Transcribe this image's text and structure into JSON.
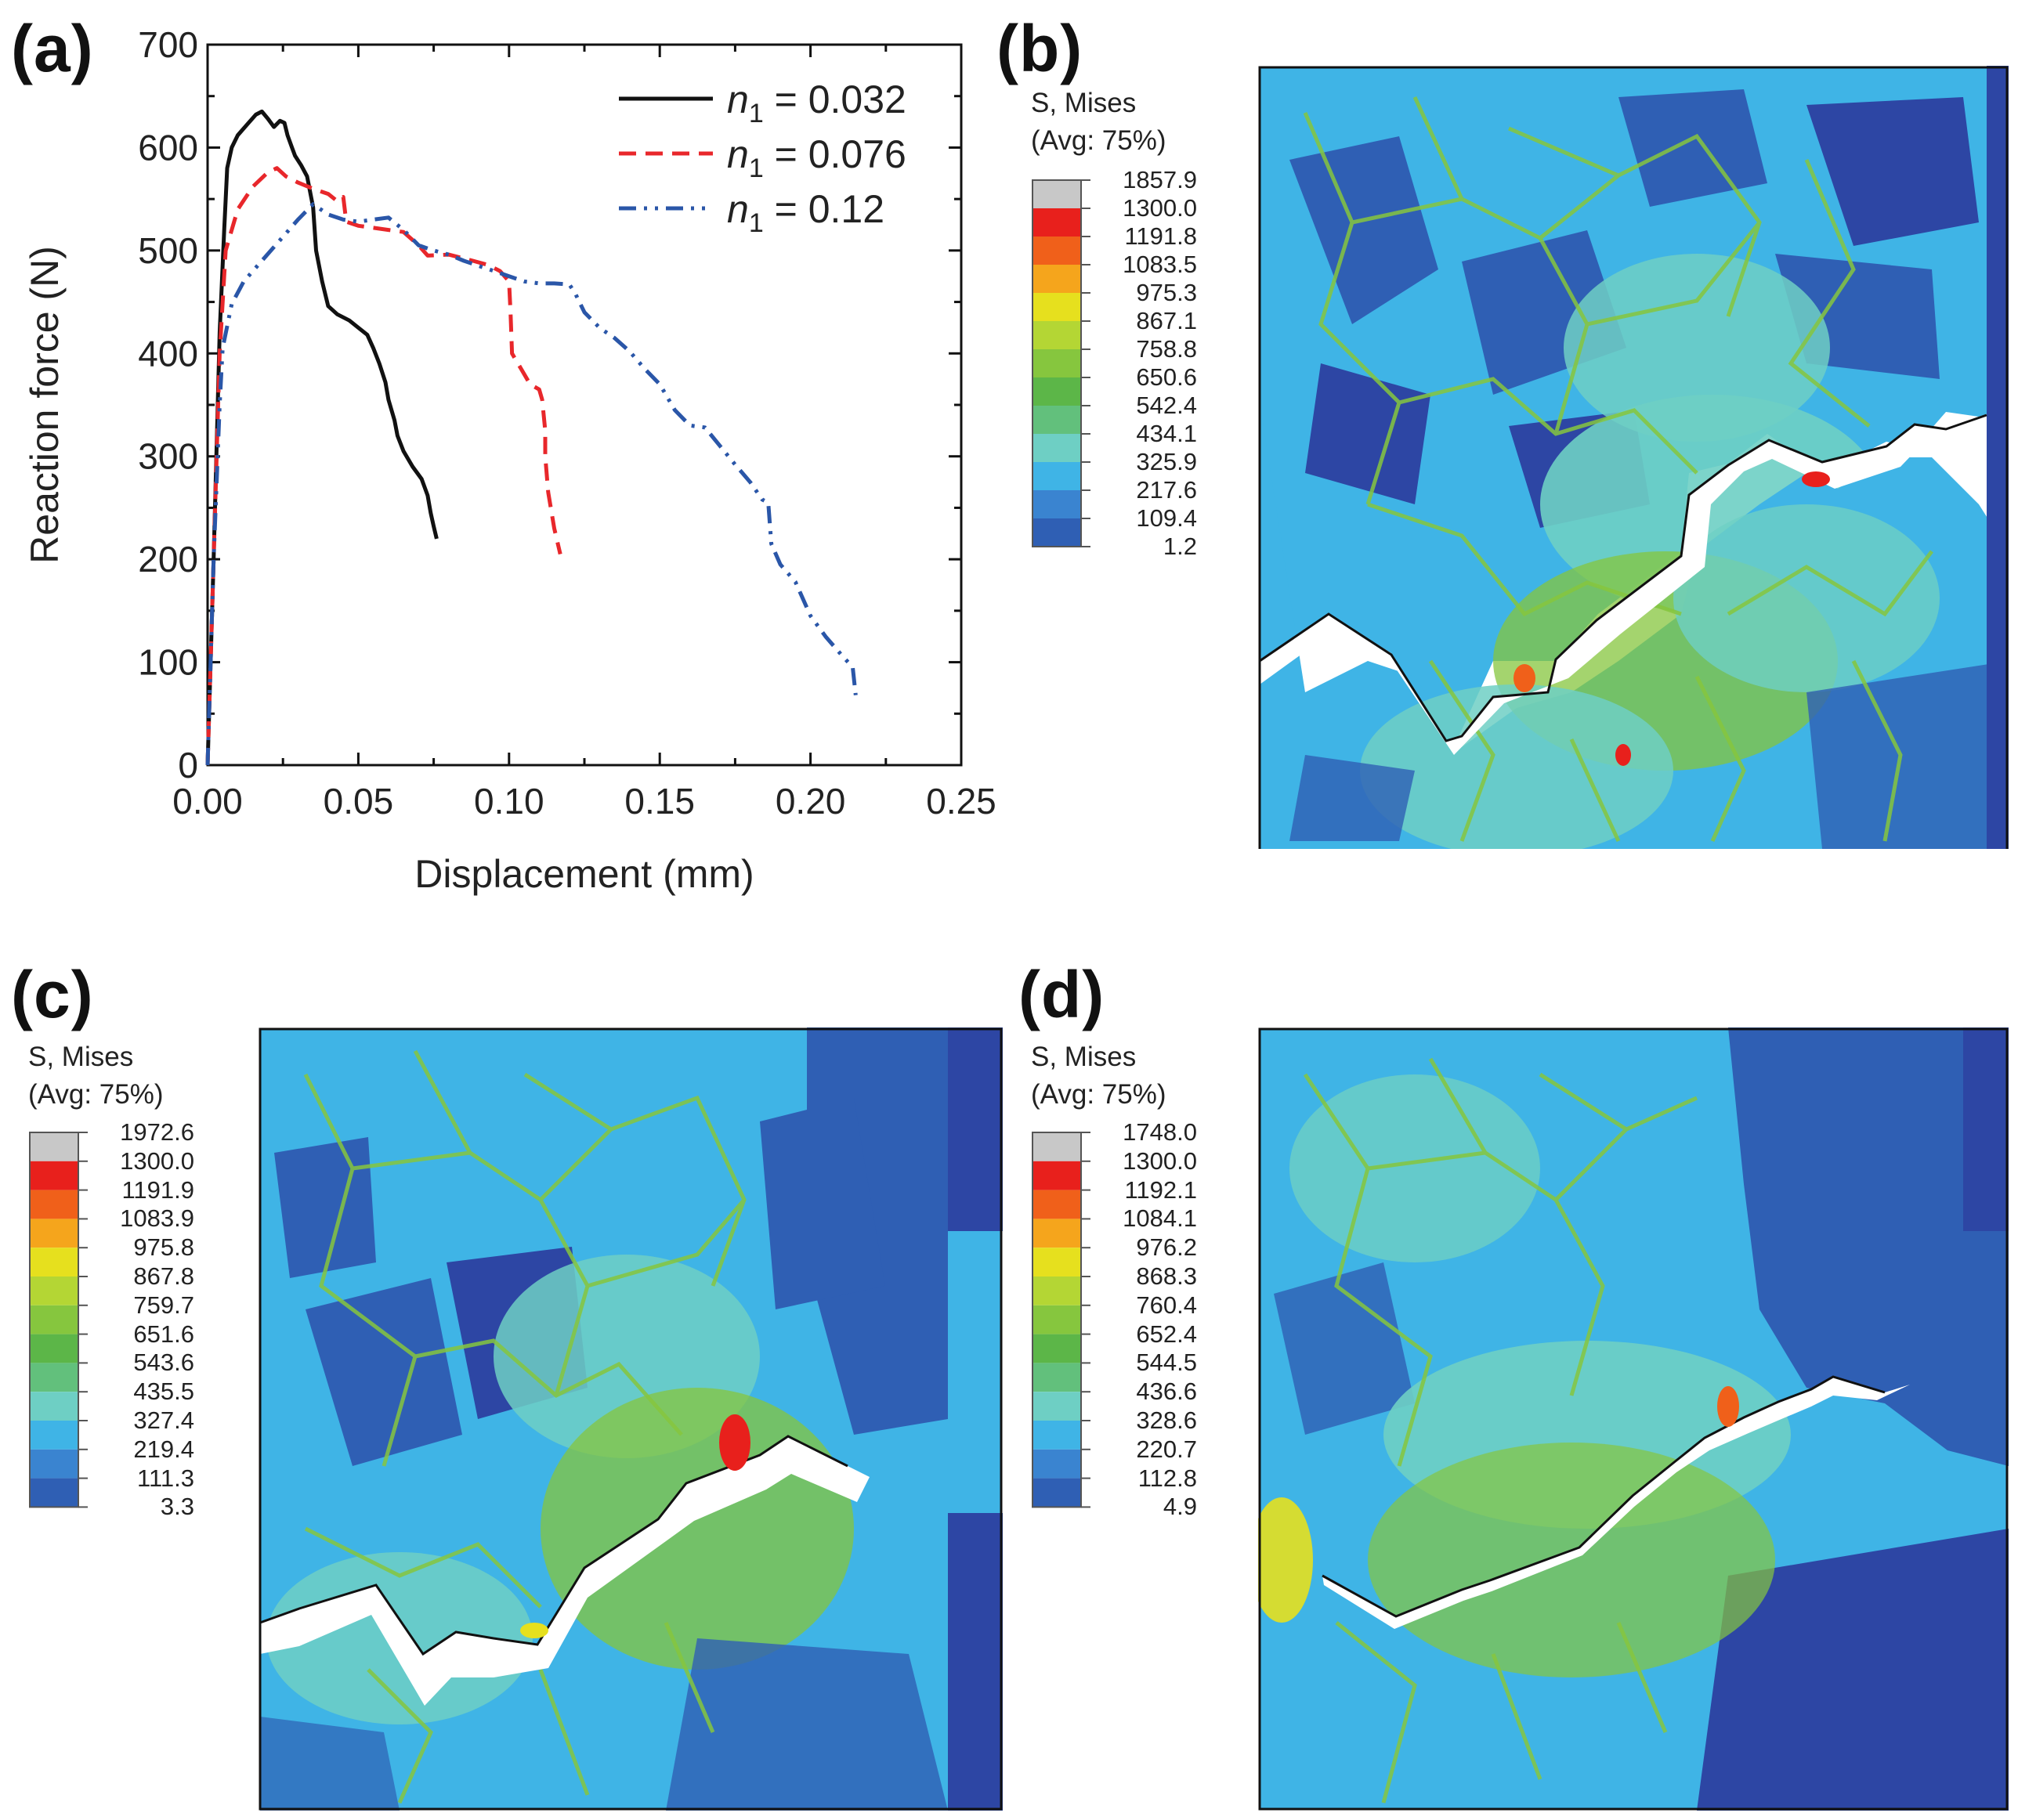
{
  "panels": {
    "a": "(a)",
    "b": "(b)",
    "c": "(c)",
    "d": "(d)"
  },
  "chart_data": {
    "type": "line",
    "title": "",
    "xlabel": "Displacement (mm)",
    "ylabel": "Reaction force (N)",
    "xlim": [
      0,
      0.25
    ],
    "ylim": [
      0,
      700
    ],
    "xticks": [
      "0.00",
      "0.05",
      "0.10",
      "0.15",
      "0.20",
      "0.25"
    ],
    "yticks": [
      "0",
      "100",
      "200",
      "300",
      "400",
      "500",
      "600",
      "700"
    ],
    "legend_position": "top-right",
    "series": [
      {
        "name": "n1 = 0.032",
        "legend_var": "n",
        "legend_sub": "1",
        "legend_value": " = 0.032",
        "color": "#111111",
        "dash": "solid",
        "points": [
          [
            0,
            0
          ],
          [
            0.002,
            200
          ],
          [
            0.004,
            420
          ],
          [
            0.0055,
            520
          ],
          [
            0.0065,
            580
          ],
          [
            0.008,
            600
          ],
          [
            0.01,
            612
          ],
          [
            0.013,
            622
          ],
          [
            0.016,
            632
          ],
          [
            0.018,
            635
          ],
          [
            0.02,
            628
          ],
          [
            0.022,
            620
          ],
          [
            0.024,
            626
          ],
          [
            0.0255,
            624
          ],
          [
            0.0265,
            612
          ],
          [
            0.028,
            600
          ],
          [
            0.029,
            592
          ],
          [
            0.031,
            583
          ],
          [
            0.033,
            572
          ],
          [
            0.035,
            542
          ],
          [
            0.036,
            500
          ],
          [
            0.038,
            470
          ],
          [
            0.04,
            446
          ],
          [
            0.043,
            438
          ],
          [
            0.047,
            432
          ],
          [
            0.05,
            425
          ],
          [
            0.053,
            418
          ],
          [
            0.055,
            405
          ],
          [
            0.057,
            390
          ],
          [
            0.059,
            372
          ],
          [
            0.06,
            355
          ],
          [
            0.062,
            335
          ],
          [
            0.063,
            320
          ],
          [
            0.065,
            305
          ],
          [
            0.068,
            290
          ],
          [
            0.071,
            278
          ],
          [
            0.073,
            262
          ],
          [
            0.074,
            245
          ],
          [
            0.075,
            232
          ],
          [
            0.076,
            220
          ]
        ]
      },
      {
        "name": "n1 = 0.076",
        "legend_var": "n",
        "legend_sub": "1",
        "legend_value": " = 0.076",
        "color": "#e8272b",
        "dash": "dashed",
        "points": [
          [
            0,
            0
          ],
          [
            0.002,
            200
          ],
          [
            0.004,
            400
          ],
          [
            0.006,
            500
          ],
          [
            0.01,
            540
          ],
          [
            0.015,
            562
          ],
          [
            0.02,
            576
          ],
          [
            0.023,
            580
          ],
          [
            0.026,
            572
          ],
          [
            0.03,
            566
          ],
          [
            0.035,
            560
          ],
          [
            0.04,
            555
          ],
          [
            0.043,
            548
          ],
          [
            0.045,
            552
          ],
          [
            0.046,
            528
          ],
          [
            0.05,
            524
          ],
          [
            0.055,
            522
          ],
          [
            0.06,
            520
          ],
          [
            0.065,
            518
          ],
          [
            0.07,
            505
          ],
          [
            0.073,
            495
          ],
          [
            0.08,
            496
          ],
          [
            0.088,
            490
          ],
          [
            0.093,
            486
          ],
          [
            0.097,
            480
          ],
          [
            0.1,
            470
          ],
          [
            0.1005,
            440
          ],
          [
            0.101,
            400
          ],
          [
            0.104,
            385
          ],
          [
            0.107,
            370
          ],
          [
            0.11,
            365
          ],
          [
            0.111,
            355
          ],
          [
            0.112,
            325
          ],
          [
            0.112,
            300
          ],
          [
            0.113,
            265
          ],
          [
            0.115,
            230
          ],
          [
            0.117,
            205
          ]
        ]
      },
      {
        "name": "n1 = 0.12",
        "legend_var": "n",
        "legend_sub": "1",
        "legend_value": " = 0.12",
        "color": "#2a56a8",
        "dash": "dashdotdot",
        "points": [
          [
            0,
            0
          ],
          [
            0.002,
            200
          ],
          [
            0.004,
            350
          ],
          [
            0.005,
            405
          ],
          [
            0.008,
            448
          ],
          [
            0.012,
            470
          ],
          [
            0.018,
            490
          ],
          [
            0.024,
            510
          ],
          [
            0.03,
            530
          ],
          [
            0.035,
            545
          ],
          [
            0.04,
            535
          ],
          [
            0.045,
            530
          ],
          [
            0.05,
            528
          ],
          [
            0.055,
            530
          ],
          [
            0.06,
            532
          ],
          [
            0.065,
            520
          ],
          [
            0.07,
            505
          ],
          [
            0.075,
            500
          ],
          [
            0.08,
            496
          ],
          [
            0.085,
            490
          ],
          [
            0.09,
            485
          ],
          [
            0.095,
            480
          ],
          [
            0.1,
            475
          ],
          [
            0.105,
            470
          ],
          [
            0.11,
            468
          ],
          [
            0.115,
            468
          ],
          [
            0.12,
            467
          ],
          [
            0.122,
            458
          ],
          [
            0.125,
            440
          ],
          [
            0.13,
            425
          ],
          [
            0.135,
            415
          ],
          [
            0.14,
            402
          ],
          [
            0.145,
            385
          ],
          [
            0.15,
            370
          ],
          [
            0.155,
            345
          ],
          [
            0.16,
            330
          ],
          [
            0.165,
            328
          ],
          [
            0.17,
            310
          ],
          [
            0.175,
            292
          ],
          [
            0.18,
            275
          ],
          [
            0.184,
            258
          ],
          [
            0.186,
            255
          ],
          [
            0.187,
            215
          ],
          [
            0.19,
            195
          ],
          [
            0.195,
            178
          ],
          [
            0.2,
            145
          ],
          [
            0.205,
            125
          ],
          [
            0.21,
            108
          ],
          [
            0.214,
            95
          ],
          [
            0.215,
            68
          ]
        ]
      }
    ]
  },
  "legends": {
    "b": {
      "title_line1": "S, Mises",
      "title_line2": "(Avg: 75%)",
      "values": [
        "1857.9",
        "1300.0",
        "1191.8",
        "1083.5",
        "975.3",
        "867.1",
        "758.8",
        "650.6",
        "542.4",
        "434.1",
        "325.9",
        "217.6",
        "109.4",
        "1.2"
      ]
    },
    "c": {
      "title_line1": "S, Mises",
      "title_line2": "(Avg: 75%)",
      "values": [
        "1972.6",
        "1300.0",
        "1191.9",
        "1083.9",
        "975.8",
        "867.8",
        "759.7",
        "651.6",
        "543.6",
        "435.5",
        "327.4",
        "219.4",
        "111.3",
        "3.3"
      ]
    },
    "d": {
      "title_line1": "S, Mises",
      "title_line2": "(Avg: 75%)",
      "values": [
        "1748.0",
        "1300.0",
        "1192.1",
        "1084.1",
        "976.2",
        "868.3",
        "760.4",
        "652.4",
        "544.5",
        "436.6",
        "328.6",
        "220.7",
        "112.8",
        "4.9"
      ]
    }
  },
  "colormap": [
    "#c8c8c8",
    "#e8201c",
    "#f0601a",
    "#f5a51c",
    "#e6e01e",
    "#b4d634",
    "#86c63e",
    "#5cb648",
    "#62c07c",
    "#6ecfc4",
    "#3fb4e6",
    "#3a84d0",
    "#2f5fb4",
    "#2d46a4"
  ]
}
